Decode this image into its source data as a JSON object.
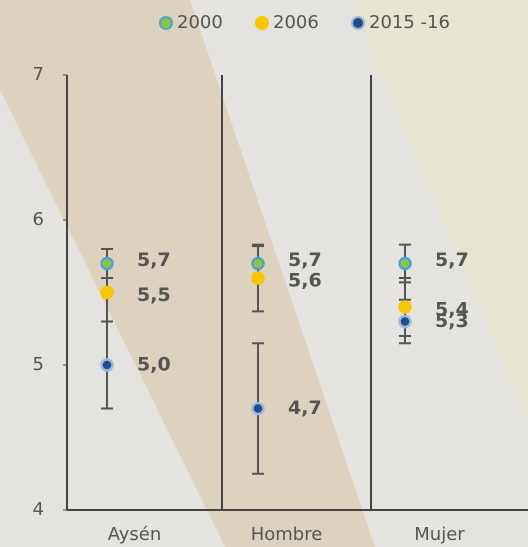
{
  "chart_data": {
    "type": "dot-errorbar",
    "categories": [
      "Aysén",
      "Hombre",
      "Mujer"
    ],
    "series": [
      {
        "name": "2000",
        "color": "#8dc63f",
        "stroke": "#4fa3d1",
        "values": [
          5.7,
          5.7,
          5.7
        ],
        "value_labels": [
          "5,7",
          "5,7",
          "5,7"
        ],
        "errors": [
          0.1,
          0.12,
          0.13
        ]
      },
      {
        "name": "2006",
        "color": "#f7c600",
        "stroke": "#f7c600",
        "values": [
          5.5,
          5.6,
          5.4
        ],
        "value_labels": [
          "5,5",
          "5,6",
          "5,4"
        ],
        "errors": [
          0.2,
          0.23,
          0.2
        ]
      },
      {
        "name": "2015 -16",
        "color": "#1f4e8c",
        "stroke": "#9fb8d8",
        "values": [
          5.0,
          4.7,
          5.3
        ],
        "value_labels": [
          "5,0",
          "4,7",
          "5,3"
        ],
        "errors": [
          0.3,
          0.45,
          0.15
        ]
      }
    ],
    "ylim": [
      4,
      7
    ],
    "yticks": [
      4,
      5,
      6,
      7
    ]
  }
}
